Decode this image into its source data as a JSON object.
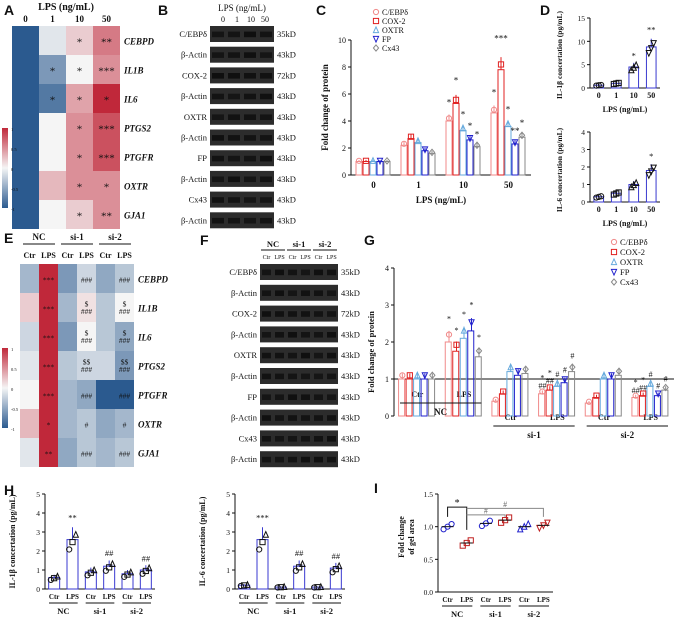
{
  "panel_letters": [
    "A",
    "B",
    "C",
    "D",
    "E",
    "F",
    "G",
    "H",
    "I"
  ],
  "heatmapA": {
    "title": "LPS (ng/mL)",
    "columns": [
      "0",
      "1",
      "10",
      "50"
    ],
    "rows": [
      "CEBPD",
      "IL1B",
      "IL6",
      "PTGS2",
      "PTGFR",
      "OXTR",
      "GJA1"
    ],
    "values": [
      [
        -2,
        -0.1,
        0.2,
        0.6
      ],
      [
        -2,
        -0.6,
        0.0,
        0.5
      ],
      [
        -2,
        -0.8,
        0.4,
        2.0
      ],
      [
        -2,
        0.0,
        0.5,
        0.8
      ],
      [
        -2,
        0.0,
        0.5,
        0.8
      ],
      [
        -2,
        0.3,
        0.5,
        0.5
      ],
      [
        -2,
        0.0,
        0.2,
        0.5
      ]
    ],
    "stars": [
      [
        "",
        "",
        "*",
        "**"
      ],
      [
        "",
        "*",
        "*",
        "***"
      ],
      [
        "",
        "*",
        "*",
        "*"
      ],
      [
        "",
        "",
        "*",
        "***"
      ],
      [
        "",
        "",
        "*",
        "***"
      ],
      [
        "",
        "",
        "*",
        "*"
      ],
      [
        "",
        "",
        "*",
        "**"
      ]
    ],
    "colorbar_ticks": [
      "1",
      "0.5",
      "0",
      "-0.5",
      "-1"
    ],
    "colors": {
      "low": "#2b5a8f",
      "mid": "#f5f5f5",
      "high": "#c0283a"
    }
  },
  "blotB": {
    "title": "LPS (ng/mL)",
    "lanes": [
      "0",
      "1",
      "10",
      "50"
    ],
    "bands": [
      "C/EBPδ",
      "β-Actin",
      "COX-2",
      "β-Actin",
      "OXTR",
      "β-Actin",
      "FP",
      "β-Actin",
      "Cx43",
      "β-Actin"
    ],
    "sizes": [
      "35kD",
      "43kD",
      "72kD",
      "43kD",
      "43kD",
      "43kD",
      "43kD",
      "43kD",
      "43kD",
      "43kD"
    ]
  },
  "chart_data": [
    {
      "id": "C",
      "type": "bar",
      "title": "",
      "xlabel": "LPS (ng/mL)",
      "ylabel": "Fold change of protein",
      "categories": [
        "0",
        "1",
        "10",
        "50"
      ],
      "ylim": [
        0,
        10
      ],
      "yticks": [
        "0",
        "2",
        "4",
        "6",
        "8",
        "10"
      ],
      "series": [
        {
          "name": "C/EBPδ",
          "color": "#f08a8a",
          "marker": "circle",
          "values": [
            1.0,
            2.2,
            4.0,
            4.6
          ]
        },
        {
          "name": "COX-2",
          "color": "#e02020",
          "marker": "square",
          "values": [
            1.0,
            2.7,
            5.3,
            7.8
          ]
        },
        {
          "name": "OXTR",
          "color": "#66aadd",
          "marker": "triangle",
          "values": [
            1.0,
            2.4,
            3.3,
            3.6
          ]
        },
        {
          "name": "FP",
          "color": "#2020cc",
          "marker": "tri-down",
          "values": [
            1.0,
            1.8,
            2.6,
            2.3
          ]
        },
        {
          "name": "Cx43",
          "color": "#888888",
          "marker": "diamond",
          "values": [
            1.0,
            1.6,
            2.1,
            2.8
          ]
        }
      ],
      "annotations": [
        [
          "",
          "",
          "*",
          "*"
        ],
        [
          "",
          "",
          "*",
          "***"
        ],
        [
          "",
          "",
          "*",
          "*"
        ],
        [
          "",
          "",
          "*",
          "**"
        ],
        [
          "",
          "",
          "*",
          "*"
        ]
      ]
    },
    {
      "id": "D1",
      "type": "bar",
      "xlabel": "LPS (ng/mL)",
      "ylabel": "IL-1β concertation (pg/mL)",
      "categories": [
        "0",
        "1",
        "10",
        "50"
      ],
      "values": [
        0.6,
        1.0,
        4.5,
        8.8
      ],
      "ylim": [
        0,
        15
      ],
      "yticks": [
        "0",
        "5",
        "10",
        "15"
      ],
      "annotations": [
        "",
        "",
        "*",
        "**"
      ],
      "color": "#3a3ad0"
    },
    {
      "id": "D2",
      "type": "bar",
      "xlabel": "LPS (ng/mL)",
      "ylabel": "IL-6 concertation (pg/mL)",
      "categories": [
        "0",
        "1",
        "10",
        "50"
      ],
      "values": [
        0.3,
        0.5,
        1.0,
        1.8
      ],
      "ylim": [
        0,
        4
      ],
      "yticks": [
        "0",
        "1",
        "2",
        "3",
        "4"
      ],
      "annotations": [
        "",
        "",
        "",
        "*"
      ],
      "color": "#3a3ad0"
    },
    {
      "id": "G",
      "type": "bar",
      "ylabel": "Fold change of protein",
      "groups": [
        "NC",
        "si-1",
        "si-2"
      ],
      "subgroups": [
        "Ctr",
        "LPS"
      ],
      "ylim": [
        0,
        4
      ],
      "yticks": [
        "0",
        "1",
        "2",
        "3",
        "4"
      ],
      "series": [
        {
          "name": "C/EBPδ",
          "color": "#f08a8a",
          "values": [
            1.0,
            2.0,
            0.4,
            0.6,
            0.35,
            0.5
          ]
        },
        {
          "name": "COX-2",
          "color": "#e02020",
          "values": [
            1.0,
            1.75,
            0.6,
            0.7,
            0.5,
            0.55
          ]
        },
        {
          "name": "OXTR",
          "color": "#66aadd",
          "values": [
            1.0,
            2.1,
            1.2,
            0.8,
            1.0,
            0.8
          ]
        },
        {
          "name": "FP",
          "color": "#2020cc",
          "values": [
            1.0,
            2.3,
            1.1,
            0.9,
            1.0,
            0.55
          ]
        },
        {
          "name": "Cx43",
          "color": "#888888",
          "values": [
            1.0,
            1.6,
            1.15,
            1.2,
            1.1,
            0.7
          ]
        }
      ],
      "lps_marks": {
        "NC": [
          "*",
          "*",
          "*",
          "*",
          "*"
        ],
        "si-1": [
          "*\n##",
          "*\n##",
          "#",
          "#",
          "#"
        ],
        "si-2": [
          "*\n##",
          "*\n##",
          "#",
          "#",
          "#"
        ]
      }
    },
    {
      "id": "H1",
      "type": "bar",
      "ylabel": "IL-1β concertation (pg/mL)",
      "groups": [
        "NC",
        "si-1",
        "si-2"
      ],
      "subgroups": [
        "Ctr",
        "LPS"
      ],
      "values": [
        0.6,
        2.6,
        0.9,
        1.2,
        0.8,
        1.0
      ],
      "ylim": [
        0,
        5
      ],
      "yticks": [
        "0",
        "1",
        "2",
        "3",
        "4",
        "5"
      ],
      "annotations": [
        "",
        "**",
        "",
        "##",
        "",
        "##"
      ],
      "color": "#3a3ad0"
    },
    {
      "id": "H2",
      "type": "bar",
      "ylabel": "IL-6 concertation (pg/mL)",
      "groups": [
        "NC",
        "si-1",
        "si-2"
      ],
      "subgroups": [
        "Ctr",
        "LPS"
      ],
      "values": [
        0.2,
        2.6,
        0.1,
        1.2,
        0.1,
        1.1
      ],
      "ylim": [
        0,
        5
      ],
      "yticks": [
        "0",
        "1",
        "2",
        "3",
        "4",
        "5"
      ],
      "annotations": [
        "",
        "***",
        "",
        "##",
        "",
        "##"
      ],
      "color": "#3a3ad0"
    },
    {
      "id": "I",
      "type": "scatter",
      "ylabel": "Fold change of gel area",
      "groups": [
        "NC",
        "si-1",
        "si-2"
      ],
      "subgroups": [
        "Ctr",
        "LPS"
      ],
      "values": [
        1.0,
        0.75,
        1.05,
        1.1,
        1.0,
        1.02
      ],
      "ylim": [
        0,
        1.5
      ],
      "yticks": [
        "0.0",
        "0.5",
        "1.0",
        "1.5"
      ],
      "annotations": [
        "*",
        "#",
        "#"
      ],
      "colors": [
        "#2020cc",
        "#c02020",
        "#2020cc",
        "#c02020",
        "#2020cc",
        "#c02020"
      ]
    }
  ],
  "heatmapE": {
    "groups": [
      "NC",
      "si-1",
      "si-2"
    ],
    "columns": [
      "Ctr",
      "LPS",
      "Ctr",
      "LPS",
      "Ctr",
      "LPS"
    ],
    "rows": [
      "CEBPD",
      "IL1B",
      "IL6",
      "PTGS2",
      "PTGFR",
      "OXTR",
      "GJA1"
    ],
    "values": [
      [
        -0.4,
        1.5,
        -0.6,
        -0.2,
        -0.5,
        -0.3
      ],
      [
        0.2,
        1.2,
        -0.4,
        0.1,
        -0.3,
        0.0
      ],
      [
        -0.2,
        1.4,
        -0.6,
        0.0,
        -0.3,
        -0.5
      ],
      [
        -0.1,
        1.0,
        -0.3,
        -0.2,
        -0.2,
        -0.6
      ],
      [
        0.0,
        1.1,
        -0.4,
        -0.5,
        -1.0,
        -1.2
      ],
      [
        0.3,
        1.6,
        -0.4,
        -0.3,
        -0.5,
        -0.4
      ],
      [
        -0.1,
        1.2,
        -0.5,
        -0.3,
        -0.4,
        -0.3
      ]
    ],
    "marks": [
      [
        "",
        "***",
        "",
        "###",
        "",
        "###"
      ],
      [
        "",
        "***",
        "",
        "$\n###",
        "",
        "$\n###"
      ],
      [
        "",
        "***",
        "",
        "$\n###",
        "",
        "$\n###"
      ],
      [
        "",
        "***",
        "",
        "$$\n###",
        "",
        "$$\n###"
      ],
      [
        "",
        "***",
        "",
        "###",
        "",
        "###"
      ],
      [
        "",
        "*",
        "",
        "#",
        "",
        "#"
      ],
      [
        "",
        "**",
        "",
        "###",
        "",
        "###"
      ]
    ],
    "colorbar_ticks": [
      "1",
      "0.5",
      "0",
      "-0.5",
      "-1"
    ]
  },
  "blotF": {
    "groups": [
      "NC",
      "si-1",
      "si-2"
    ],
    "lanes": [
      "Ctr",
      "LPS",
      "Ctr",
      "LPS",
      "Ctr",
      "LPS"
    ],
    "bands": [
      "C/EBPδ",
      "β-Actin",
      "COX-2",
      "β-Actin",
      "OXTR",
      "β-Actin",
      "FP",
      "β-Actin",
      "Cx43",
      "β-Actin"
    ],
    "sizes": [
      "35kD",
      "43kD",
      "72kD",
      "43kD",
      "43kD",
      "43kD",
      "43kD",
      "43kD",
      "43kD",
      "43kD"
    ]
  }
}
